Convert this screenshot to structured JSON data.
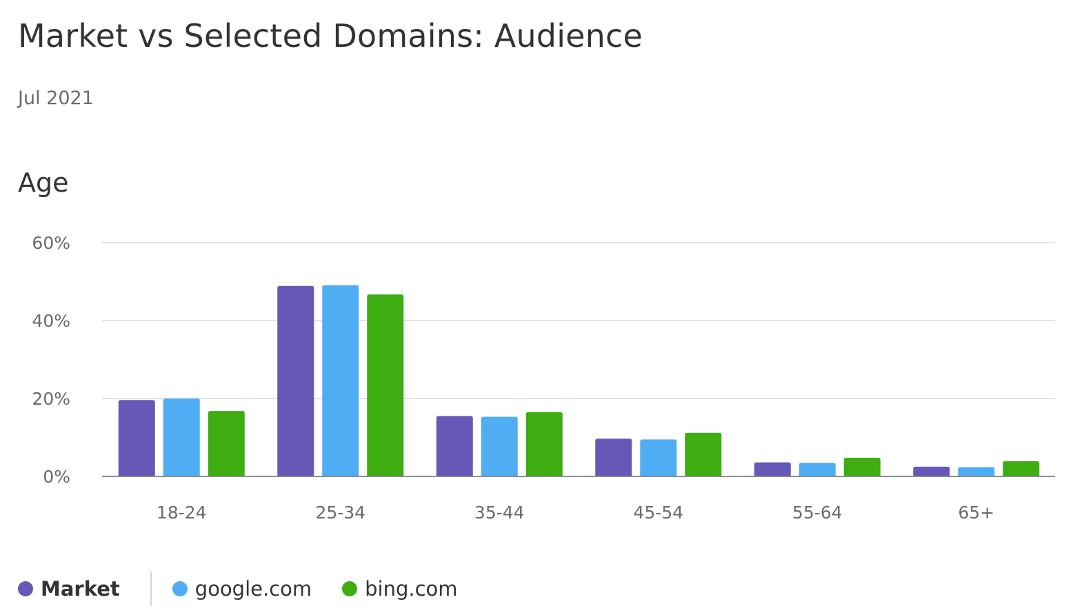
{
  "header": {
    "title": "Market vs Selected Domains: Audience",
    "date": "Jul 2021"
  },
  "section": {
    "title": "Age"
  },
  "colors": {
    "market": "#6658b6",
    "google": "#4fadf4",
    "bing": "#3dad12",
    "grid": "#e3e3e3",
    "axis": "#8c8c8c",
    "tick_text": "#6b6b6b"
  },
  "legend": {
    "items": [
      {
        "label": "Market",
        "color": "#6658b6",
        "icon": "circle-icon"
      },
      {
        "label": "google.com",
        "color": "#4fadf4",
        "icon": "circle-icon"
      },
      {
        "label": "bing.com",
        "color": "#3dad12",
        "icon": "circle-icon"
      }
    ]
  },
  "chart_data": {
    "type": "bar",
    "title": "Age",
    "categories": [
      "18-24",
      "25-34",
      "35-44",
      "45-54",
      "55-64",
      "65+"
    ],
    "series": [
      {
        "name": "Market",
        "color": "#6658b6",
        "values": [
          19.6,
          48.9,
          15.5,
          9.7,
          3.6,
          2.5
        ]
      },
      {
        "name": "google.com",
        "color": "#4fadf4",
        "values": [
          20.0,
          49.1,
          15.3,
          9.5,
          3.5,
          2.4
        ]
      },
      {
        "name": "bing.com",
        "color": "#3dad12",
        "values": [
          16.8,
          46.7,
          16.5,
          11.2,
          4.8,
          3.9
        ]
      }
    ],
    "ylim": [
      0,
      60
    ],
    "yticks": [
      0,
      20,
      40,
      60
    ],
    "ytick_labels": [
      "0%",
      "20%",
      "40%",
      "60%"
    ],
    "y_format": "percent",
    "grid": true,
    "legend_position": "bottom-left"
  }
}
